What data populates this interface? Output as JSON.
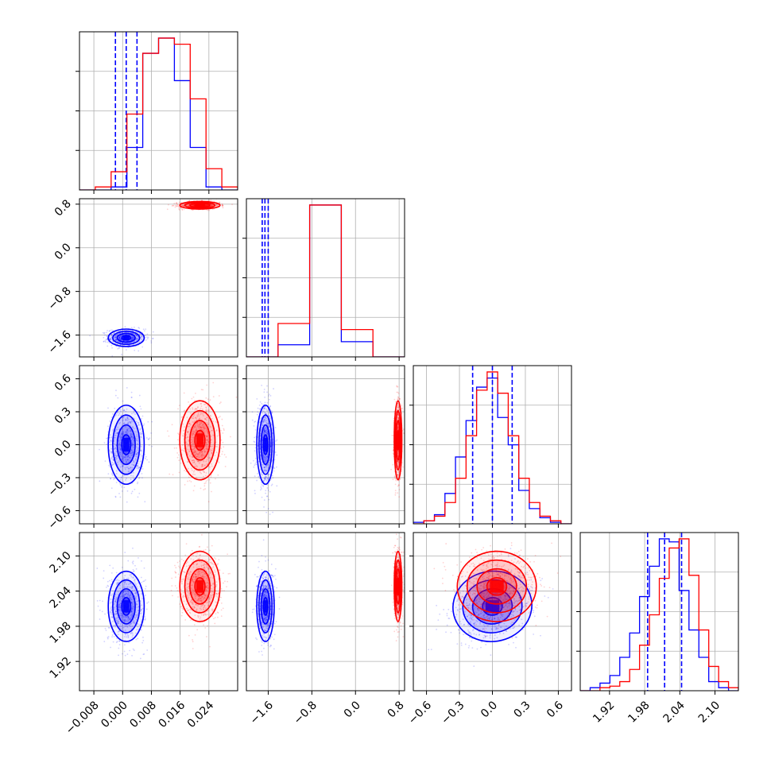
{
  "colors": {
    "blue": "#0000ff",
    "red": "#ff0000",
    "grid": "#b0b0b0",
    "frame": "#000000"
  },
  "chart_data": {
    "type": "corner",
    "params": [
      {
        "range": [
          -0.012,
          0.032
        ],
        "ticks": [
          -0.008,
          0.0,
          0.008,
          0.016,
          0.024
        ],
        "tick_labels": [
          "−0.008",
          "0.000",
          "0.008",
          "0.016",
          "0.024"
        ]
      },
      {
        "range": [
          -2.0,
          0.9
        ],
        "ticks": [
          -1.6,
          -0.8,
          0.0,
          0.8
        ],
        "tick_labels": [
          "−1.6",
          "−0.8",
          "0.0",
          "0.8"
        ]
      },
      {
        "range": [
          -0.72,
          0.72
        ],
        "ticks": [
          -0.6,
          -0.3,
          0.0,
          0.3,
          0.6
        ],
        "tick_labels": [
          "−0.6",
          "−0.3",
          "0.0",
          "0.3",
          "0.6"
        ]
      },
      {
        "range": [
          1.87,
          2.14
        ],
        "ticks": [
          1.92,
          1.98,
          2.04,
          2.1
        ],
        "tick_labels": [
          "1.92",
          "1.98",
          "2.04",
          "2.10"
        ]
      }
    ],
    "series": [
      {
        "color": "#0000ff",
        "mean": [
          0.001,
          -1.65,
          0.0,
          2.014
        ],
        "sigma": [
          0.0025,
          0.08,
          0.18,
          0.03
        ],
        "corr": {
          "2-3": 0.3
        },
        "quantiles": [
          [
            -0.002,
            0.001,
            0.004
          ],
          [
            -1.71,
            -1.66,
            -1.6
          ],
          [
            -0.18,
            0.0,
            0.18
          ],
          [
            1.985,
            2.014,
            2.043
          ]
        ],
        "marginals": [
          [
            0.0,
            0.0,
            0.02,
            0.28,
            0.9,
            1.0,
            0.72,
            0.28,
            0.02,
            0.0
          ],
          [
            0.0,
            0.08,
            1.0,
            0.1,
            0.0
          ],
          [
            0.01,
            0.02,
            0.06,
            0.2,
            0.44,
            0.68,
            0.9,
            0.96,
            0.7,
            0.52,
            0.22,
            0.1,
            0.04,
            0.01,
            0.0
          ],
          [
            0.0,
            0.02,
            0.05,
            0.1,
            0.22,
            0.38,
            0.62,
            0.82,
            1.0,
            0.98,
            0.66,
            0.4,
            0.22,
            0.06,
            0.02,
            0.0
          ]
        ]
      },
      {
        "color": "#ff0000",
        "mean": [
          0.0215,
          0.78,
          0.04,
          2.048
        ],
        "sigma": [
          0.0028,
          0.035,
          0.18,
          0.03
        ],
        "corr": {
          "2-3": 0.0
        },
        "quantiles": null,
        "marginals": [
          [
            0.0,
            0.02,
            0.12,
            0.5,
            0.9,
            1.0,
            0.96,
            0.6,
            0.14,
            0.02
          ],
          [
            0.0,
            0.22,
            1.0,
            0.18,
            0.0
          ],
          [
            0.0,
            0.02,
            0.05,
            0.14,
            0.3,
            0.58,
            0.88,
            1.0,
            0.86,
            0.58,
            0.3,
            0.14,
            0.05,
            0.02,
            0.0
          ],
          [
            0.0,
            0.0,
            0.02,
            0.03,
            0.06,
            0.14,
            0.3,
            0.5,
            0.74,
            0.94,
            1.0,
            0.76,
            0.4,
            0.16,
            0.06,
            0.02
          ]
        ]
      }
    ],
    "annotations": "dashed blue lines mark the 16/50/84 percent quantiles of the blue series on each diagonal histogram; 2D panels show scatter, density shading and 0.5/1/1.5/2 sigma contours",
    "grid": true
  }
}
